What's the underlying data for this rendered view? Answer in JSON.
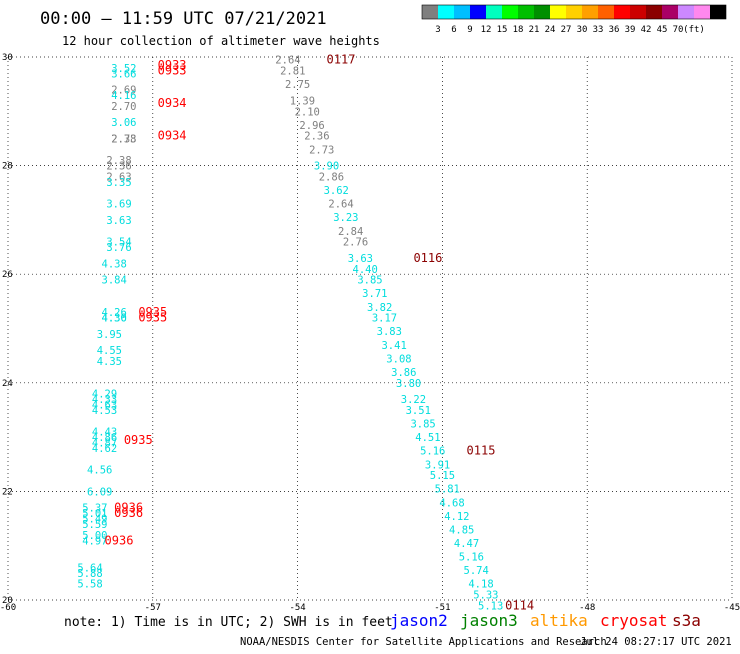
{
  "header": {
    "title": "00:00 – 11:59 UTC 07/21/2021",
    "subtitle": "12 hour collection of altimeter wave heights"
  },
  "colorbar": {
    "colors": [
      "#7f7f7f",
      "#00ffff",
      "#00bfff",
      "#0000ff",
      "#00ffbf",
      "#00ff00",
      "#00bf00",
      "#008f00",
      "#ffff00",
      "#ffd000",
      "#ffa000",
      "#ff6000",
      "#ff0000",
      "#cc0000",
      "#8b0000",
      "#aa0066",
      "#cc88ff",
      "#ff88ee",
      "#000000"
    ],
    "labels": [
      "3",
      "6",
      "9",
      "12",
      "15",
      "18",
      "21",
      "24",
      "27",
      "30",
      "33",
      "36",
      "39",
      "42",
      "45",
      "70",
      "(ft)"
    ]
  },
  "footer": {
    "note": "note:  1) Time is in UTC;  2) SWH is in feet",
    "legend": [
      {
        "label": "jason2",
        "color": "#0000ff"
      },
      {
        "label": "jason3",
        "color": "#008000"
      },
      {
        "label": "altika",
        "color": "#ff9900"
      },
      {
        "label": "cryosat",
        "color": "#ff0000"
      },
      {
        "label": "s3a",
        "color": "#8b0000"
      }
    ],
    "credit": "NOAA/NESDIS Center for Satellite Applications and Research",
    "timestamp": "Jul 24 08:27:17 UTC 2021"
  },
  "chart_data": {
    "type": "scatter",
    "title": "12 hour collection of altimeter wave heights",
    "xlim": [
      -60,
      -45
    ],
    "ylim": [
      20,
      30
    ],
    "x_ticks": [
      -60,
      -57,
      -54,
      -51,
      -48,
      -45
    ],
    "y_ticks": [
      20,
      22,
      24,
      26,
      28,
      30
    ],
    "grid": true,
    "series": [
      {
        "name": "cryosat",
        "color": "#00dddd",
        "points": [
          {
            "x": -57.6,
            "y": 29.8,
            "label": "3.52"
          },
          {
            "x": -57.6,
            "y": 29.7,
            "label": "3.66"
          },
          {
            "x": -57.6,
            "y": 29.4,
            "label": "2.69"
          },
          {
            "x": -57.6,
            "y": 29.3,
            "label": "4.16"
          },
          {
            "x": -57.6,
            "y": 29.1,
            "label": "2.70"
          },
          {
            "x": -57.6,
            "y": 28.8,
            "label": "3.06"
          },
          {
            "x": -57.6,
            "y": 28.5,
            "label": "2.33"
          },
          {
            "x": -57.6,
            "y": 28.5,
            "label": "2.78"
          },
          {
            "x": -57.7,
            "y": 28.1,
            "label": "2.38"
          },
          {
            "x": -57.7,
            "y": 28.0,
            "label": "2.36"
          },
          {
            "x": -57.7,
            "y": 27.8,
            "label": "2.63"
          },
          {
            "x": -57.7,
            "y": 27.7,
            "label": "3.35"
          },
          {
            "x": -57.7,
            "y": 27.3,
            "label": "3.69"
          },
          {
            "x": -57.7,
            "y": 27.0,
            "label": "3.63"
          },
          {
            "x": -57.7,
            "y": 26.6,
            "label": "3.54"
          },
          {
            "x": -57.7,
            "y": 26.5,
            "label": "3.76"
          },
          {
            "x": -57.8,
            "y": 26.2,
            "label": "4.38"
          },
          {
            "x": -57.8,
            "y": 25.9,
            "label": "3.84"
          },
          {
            "x": -57.8,
            "y": 25.3,
            "label": "4.26"
          },
          {
            "x": -57.8,
            "y": 25.2,
            "label": "4.30"
          },
          {
            "x": -57.8,
            "y": 25.2,
            "label": "4.36"
          },
          {
            "x": -57.9,
            "y": 24.9,
            "label": "3.95"
          },
          {
            "x": -57.9,
            "y": 24.6,
            "label": "4.55"
          },
          {
            "x": -57.9,
            "y": 24.4,
            "label": "4.35"
          },
          {
            "x": -58.0,
            "y": 23.8,
            "label": "4.29"
          },
          {
            "x": -58.0,
            "y": 23.7,
            "label": "4.33"
          },
          {
            "x": -58.0,
            "y": 23.6,
            "label": "4.63"
          },
          {
            "x": -58.0,
            "y": 23.5,
            "label": "4.53"
          },
          {
            "x": -58.0,
            "y": 23.1,
            "label": "4.43"
          },
          {
            "x": -58.0,
            "y": 23.0,
            "label": "4.86"
          },
          {
            "x": -58.0,
            "y": 22.9,
            "label": "4.87"
          },
          {
            "x": -58.0,
            "y": 22.8,
            "label": "4.62"
          },
          {
            "x": -58.1,
            "y": 22.4,
            "label": "4.56"
          },
          {
            "x": -58.1,
            "y": 22.0,
            "label": "6.09"
          },
          {
            "x": -58.2,
            "y": 21.7,
            "label": "5.37"
          },
          {
            "x": -58.2,
            "y": 21.6,
            "label": "5.01"
          },
          {
            "x": -58.2,
            "y": 21.5,
            "label": "5.49"
          },
          {
            "x": -58.2,
            "y": 21.4,
            "label": "5.59"
          },
          {
            "x": -58.2,
            "y": 21.2,
            "label": "5.00"
          },
          {
            "x": -58.2,
            "y": 21.1,
            "label": "4.97"
          },
          {
            "x": -58.3,
            "y": 20.6,
            "label": "5.64"
          },
          {
            "x": -58.3,
            "y": 20.5,
            "label": "5.88"
          },
          {
            "x": -58.3,
            "y": 20.3,
            "label": "5.58"
          }
        ],
        "times": [
          {
            "x": -56.9,
            "y": 29.85,
            "label": "0933"
          },
          {
            "x": -56.9,
            "y": 29.75,
            "label": "0933"
          },
          {
            "x": -56.9,
            "y": 29.15,
            "label": "0934"
          },
          {
            "x": -56.9,
            "y": 28.55,
            "label": "0934"
          },
          {
            "x": -57.3,
            "y": 25.3,
            "label": "0935"
          },
          {
            "x": -57.3,
            "y": 25.2,
            "label": "0935"
          },
          {
            "x": -57.6,
            "y": 22.95,
            "label": "0935"
          },
          {
            "x": -57.8,
            "y": 21.7,
            "label": "0936"
          },
          {
            "x": -57.8,
            "y": 21.6,
            "label": "0936"
          },
          {
            "x": -58.0,
            "y": 21.1,
            "label": "0936"
          }
        ]
      },
      {
        "name": "s3a",
        "color": "#00dddd",
        "points": [
          {
            "x": -54.2,
            "y": 29.95,
            "label": "2.64"
          },
          {
            "x": -54.1,
            "y": 29.75,
            "label": "2.81"
          },
          {
            "x": -54.0,
            "y": 29.5,
            "label": "2.75"
          },
          {
            "x": -53.9,
            "y": 29.2,
            "label": "1.39"
          },
          {
            "x": -53.8,
            "y": 29.0,
            "label": "2.10"
          },
          {
            "x": -53.7,
            "y": 28.75,
            "label": "2.96"
          },
          {
            "x": -53.6,
            "y": 28.55,
            "label": "2.36"
          },
          {
            "x": -53.5,
            "y": 28.3,
            "label": "2.73"
          },
          {
            "x": -53.4,
            "y": 28.0,
            "label": "3.90"
          },
          {
            "x": -53.3,
            "y": 27.8,
            "label": "2.86"
          },
          {
            "x": -53.2,
            "y": 27.55,
            "label": "3.62"
          },
          {
            "x": -53.1,
            "y": 27.3,
            "label": "2.64"
          },
          {
            "x": -53.0,
            "y": 27.05,
            "label": "3.23"
          },
          {
            "x": -52.9,
            "y": 26.8,
            "label": "2.84"
          },
          {
            "x": -52.8,
            "y": 26.6,
            "label": "2.76"
          },
          {
            "x": -52.7,
            "y": 26.3,
            "label": "3.63"
          },
          {
            "x": -52.6,
            "y": 26.1,
            "label": "4.40"
          },
          {
            "x": -52.5,
            "y": 25.9,
            "label": "3.85"
          },
          {
            "x": -52.4,
            "y": 25.65,
            "label": "3.71"
          },
          {
            "x": -52.3,
            "y": 25.4,
            "label": "3.82"
          },
          {
            "x": -52.2,
            "y": 25.2,
            "label": "3.17"
          },
          {
            "x": -52.1,
            "y": 24.95,
            "label": "3.83"
          },
          {
            "x": -52.0,
            "y": 24.7,
            "label": "3.41"
          },
          {
            "x": -51.9,
            "y": 24.45,
            "label": "3.08"
          },
          {
            "x": -51.8,
            "y": 24.2,
            "label": "3.86"
          },
          {
            "x": -51.7,
            "y": 24.0,
            "label": "3.80"
          },
          {
            "x": -51.6,
            "y": 23.7,
            "label": "3.22"
          },
          {
            "x": -51.5,
            "y": 23.5,
            "label": "3.51"
          },
          {
            "x": -51.4,
            "y": 23.25,
            "label": "3.85"
          },
          {
            "x": -51.3,
            "y": 23.0,
            "label": "4.51"
          },
          {
            "x": -51.2,
            "y": 22.75,
            "label": "5.16"
          },
          {
            "x": -51.1,
            "y": 22.5,
            "label": "3.91"
          },
          {
            "x": -51.0,
            "y": 22.3,
            "label": "5.15"
          },
          {
            "x": -50.9,
            "y": 22.05,
            "label": "5.81"
          },
          {
            "x": -50.8,
            "y": 21.8,
            "label": "4.68"
          },
          {
            "x": -50.7,
            "y": 21.55,
            "label": "4.12"
          },
          {
            "x": -50.6,
            "y": 21.3,
            "label": "4.85"
          },
          {
            "x": -50.5,
            "y": 21.05,
            "label": "4.47"
          },
          {
            "x": -50.4,
            "y": 20.8,
            "label": "5.16"
          },
          {
            "x": -50.3,
            "y": 20.55,
            "label": "5.74"
          },
          {
            "x": -50.2,
            "y": 20.3,
            "label": "4.18"
          },
          {
            "x": -50.1,
            "y": 20.1,
            "label": "5.33"
          },
          {
            "x": -50.0,
            "y": 19.9,
            "label": "5.13"
          }
        ],
        "times": [
          {
            "x": -53.4,
            "y": 29.95,
            "label": "0117"
          },
          {
            "x": -51.6,
            "y": 26.3,
            "label": "0116"
          },
          {
            "x": -50.5,
            "y": 22.75,
            "label": "0115"
          },
          {
            "x": -49.7,
            "y": 19.9,
            "label": "0114"
          }
        ]
      }
    ]
  }
}
